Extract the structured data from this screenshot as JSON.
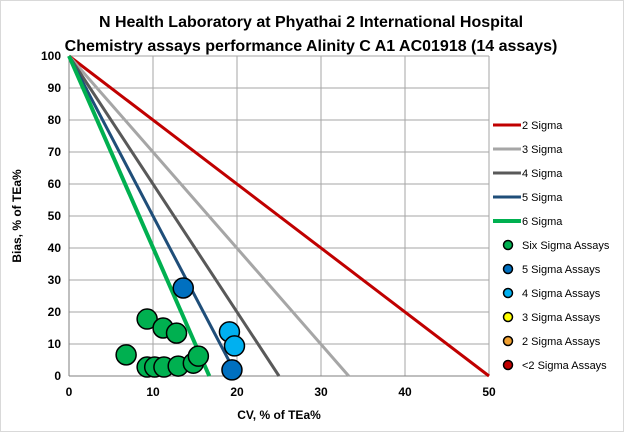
{
  "chart_data": {
    "type": "scatter",
    "title": "N Health Laboratory at Phyathai 2 International Hospital",
    "subtitle": "Chemistry assays performance Alinity C A1 AC01918 (14 assays)",
    "xlabel": "CV, % of TEa%",
    "ylabel": "Bias, % of TEa%",
    "xlim": [
      0,
      50
    ],
    "ylim": [
      0,
      100
    ],
    "xticks": [
      0,
      10,
      20,
      30,
      40,
      50
    ],
    "yticks": [
      0,
      10,
      20,
      30,
      40,
      50,
      60,
      70,
      80,
      90,
      100
    ],
    "grid": true,
    "legend_placement": "right",
    "lines": [
      {
        "name": "2 Sigma",
        "points": [
          [
            0,
            100
          ],
          [
            50,
            0
          ]
        ],
        "color": "#C00000"
      },
      {
        "name": "3 Sigma",
        "points": [
          [
            0,
            100
          ],
          [
            33.3,
            0
          ]
        ],
        "color": "#A6A6A6"
      },
      {
        "name": "4 Sigma",
        "points": [
          [
            0,
            100
          ],
          [
            25,
            0
          ]
        ],
        "color": "#595959"
      },
      {
        "name": "5 Sigma",
        "points": [
          [
            0,
            100
          ],
          [
            20,
            0
          ]
        ],
        "color": "#1F4E79"
      },
      {
        "name": "6 Sigma",
        "points": [
          [
            0,
            100
          ],
          [
            16.7,
            0
          ]
        ],
        "color": "#00B050"
      }
    ],
    "series": [
      {
        "name": "Six Sigma Assays",
        "color": "#00B050",
        "points": [
          [
            6.8,
            6.6
          ],
          [
            9.3,
            17.8
          ],
          [
            11.2,
            15.0
          ],
          [
            12.8,
            13.4
          ],
          [
            9.3,
            2.8
          ],
          [
            10.2,
            2.8
          ],
          [
            11.3,
            2.8
          ],
          [
            13.0,
            3.1
          ],
          [
            14.8,
            4.0
          ],
          [
            15.4,
            6.2
          ]
        ]
      },
      {
        "name": "5 Sigma Assays",
        "color": "#0070C0",
        "points": [
          [
            13.6,
            27.5
          ],
          [
            19.4,
            1.9
          ]
        ]
      },
      {
        "name": "4 Sigma Assays",
        "color": "#00B0F0",
        "points": [
          [
            19.1,
            13.8
          ],
          [
            19.7,
            9.4
          ]
        ]
      },
      {
        "name": "3 Sigma Assays",
        "color": "#FFFF00",
        "points": []
      },
      {
        "name": "2 Sigma Assays",
        "color": "#F0A030",
        "points": []
      },
      {
        "name": "<2 Sigma Assays",
        "color": "#C00000",
        "points": []
      }
    ]
  }
}
